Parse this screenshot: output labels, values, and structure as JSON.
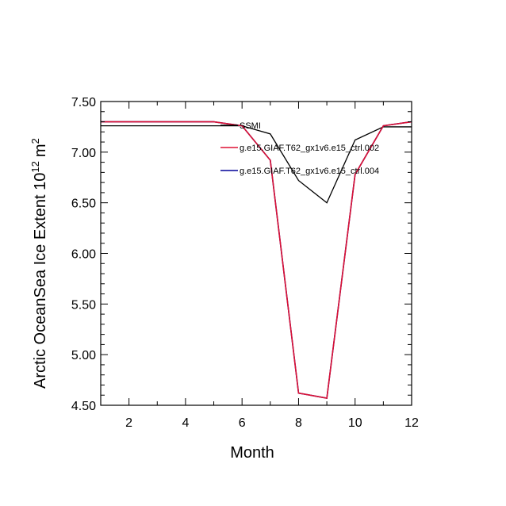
{
  "chart_data": {
    "type": "line",
    "title": "",
    "xlabel": "Month",
    "ylabel_main": "Arctic OceanSea Ice Extent 10",
    "ylabel_exp1": "12",
    "ylabel_unit": "m",
    "ylabel_exp2": "2",
    "xlim": [
      1,
      12
    ],
    "ylim": [
      4.5,
      7.5
    ],
    "x_ticks": [
      2,
      4,
      6,
      8,
      10,
      12
    ],
    "x_tick_labels": [
      "2",
      "4",
      "6",
      "8",
      "10",
      "12"
    ],
    "y_ticks": [
      4.5,
      5.0,
      5.5,
      6.0,
      6.5,
      7.0,
      7.5
    ],
    "y_tick_labels": [
      "4.50",
      "5.00",
      "5.50",
      "6.00",
      "6.50",
      "7.00",
      "7.50"
    ],
    "grid": false,
    "legend_position": "top-right, inside plot",
    "x": [
      1,
      2,
      3,
      4,
      5,
      6,
      7,
      8,
      9,
      10,
      11,
      12
    ],
    "series": [
      {
        "name": "SSMI",
        "color": "#000000",
        "values": [
          7.26,
          7.26,
          7.26,
          7.26,
          7.26,
          7.26,
          7.18,
          6.72,
          6.5,
          7.12,
          7.25,
          7.25
        ]
      },
      {
        "name": "g.e15.GIAF.T62_gx1v6.e15_ctrl.002",
        "color": "#dd1133",
        "values": [
          7.3,
          7.3,
          7.3,
          7.3,
          7.3,
          7.26,
          6.92,
          4.62,
          4.57,
          6.78,
          7.26,
          7.3
        ]
      },
      {
        "name": "g.e15.GIAF.T62_gx1v6.e15_ctrl.004",
        "color": "#000099",
        "values": [
          7.3,
          7.3,
          7.3,
          7.3,
          7.3,
          7.26,
          6.92,
          4.62,
          4.57,
          6.78,
          7.26,
          7.3
        ]
      }
    ]
  }
}
